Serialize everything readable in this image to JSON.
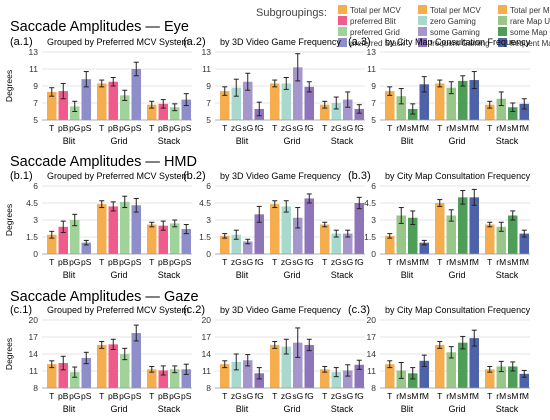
{
  "section_titles": [
    "Saccade Amplitudes — Eye",
    "Saccade Amplitudes — HMD",
    "Saccade Amplitudes — Gaze"
  ],
  "legend": {
    "title": "Subgroupings:",
    "columns": [
      [
        {
          "label": "Total per MCV",
          "color": "#f5ad4d"
        },
        {
          "label": "preferred Blit",
          "color": "#ef5c8c"
        },
        {
          "label": "preferred Grid",
          "color": "#9fd39a"
        },
        {
          "label": "preferred Stack",
          "color": "#8e8ecb"
        }
      ],
      [
        {
          "label": "Total per MCV",
          "color": "#f5ad4d"
        },
        {
          "label": "zero Gaming",
          "color": "#a9d8cf"
        },
        {
          "label": "some Gaming",
          "color": "#a597cc"
        },
        {
          "label": "frequent Gaming",
          "color": "#8e74b9"
        }
      ],
      [
        {
          "label": "Total per MCV",
          "color": "#f5ad4d"
        },
        {
          "label": "rare Map Use",
          "color": "#98c789"
        },
        {
          "label": "some Map Use",
          "color": "#4f9e58"
        },
        {
          "label": "frequent Map Use",
          "color": "#4d62a8"
        }
      ]
    ]
  },
  "chart_data": [
    {
      "type": "bar",
      "panel": "(a.1)",
      "subtitle": "Grouped by Preferred MCV System",
      "ylabel": "Degrees",
      "ylim": [
        5,
        13
      ],
      "yticks": [
        5,
        7,
        9,
        11,
        13
      ],
      "groups": [
        "Blit",
        "Grid",
        "Stack"
      ],
      "tick_labels": [
        "T",
        "pB",
        "pG",
        "pS"
      ],
      "colors": [
        "#f5ad4d",
        "#ef5c8c",
        "#9fd39a",
        "#8e8ecb"
      ],
      "values": [
        [
          8.3,
          8.4,
          6.6,
          9.8
        ],
        [
          9.3,
          9.5,
          7.9,
          11.0
        ],
        [
          6.8,
          6.9,
          6.5,
          7.4
        ]
      ],
      "errors": [
        [
          0.5,
          0.9,
          0.6,
          0.9
        ],
        [
          0.4,
          0.5,
          0.6,
          0.8
        ],
        [
          0.4,
          0.5,
          0.4,
          0.7
        ]
      ]
    },
    {
      "type": "bar",
      "panel": "(a.2)",
      "subtitle": "by 3D Video Game Frequency",
      "ylabel": "",
      "ylim": [
        5,
        13
      ],
      "yticks": [
        5,
        7,
        9,
        11,
        13
      ],
      "groups": [
        "Blit",
        "Grid",
        "Stack"
      ],
      "tick_labels": [
        "T",
        "zG",
        "sG",
        "fG"
      ],
      "colors": [
        "#f5ad4d",
        "#a9d8cf",
        "#a597cc",
        "#8e74b9"
      ],
      "values": [
        [
          8.4,
          8.8,
          9.5,
          6.3
        ],
        [
          9.3,
          9.3,
          11.2,
          8.9
        ],
        [
          6.8,
          7.0,
          7.4,
          6.3
        ]
      ],
      "errors": [
        [
          0.5,
          1.0,
          1.0,
          0.8
        ],
        [
          0.4,
          0.7,
          1.6,
          0.6
        ],
        [
          0.4,
          0.7,
          0.9,
          0.5
        ]
      ]
    },
    {
      "type": "bar",
      "panel": "(a.3)",
      "subtitle": "by City Map Consultation Frequency",
      "ylabel": "",
      "ylim": [
        5,
        13
      ],
      "yticks": [
        5,
        7,
        9,
        11,
        13
      ],
      "groups": [
        "Blit",
        "Grid",
        "Stack"
      ],
      "tick_labels": [
        "T",
        "rM",
        "sM",
        "fM"
      ],
      "colors": [
        "#f5ad4d",
        "#98c789",
        "#4f9e58",
        "#4d62a8"
      ],
      "values": [
        [
          8.4,
          7.8,
          6.3,
          9.2
        ],
        [
          9.3,
          8.8,
          9.6,
          9.7
        ],
        [
          6.8,
          7.5,
          6.5,
          6.9
        ]
      ],
      "errors": [
        [
          0.5,
          0.9,
          0.6,
          0.9
        ],
        [
          0.4,
          0.7,
          0.6,
          1.0
        ],
        [
          0.4,
          0.8,
          0.5,
          0.6
        ]
      ]
    },
    {
      "type": "bar",
      "panel": "(b.1)",
      "subtitle": "Grouped by Preferred MCV System",
      "ylabel": "Degrees",
      "ylim": [
        0,
        6
      ],
      "yticks": [
        0,
        1.5,
        3,
        4.5,
        6
      ],
      "groups": [
        "Blit",
        "Grid",
        "Stack"
      ],
      "tick_labels": [
        "T",
        "pB",
        "pG",
        "pS"
      ],
      "colors": [
        "#f5ad4d",
        "#ef5c8c",
        "#9fd39a",
        "#8e8ecb"
      ],
      "values": [
        [
          1.7,
          2.4,
          3.0,
          1.0
        ],
        [
          4.4,
          4.2,
          4.6,
          4.3
        ],
        [
          2.6,
          2.5,
          2.7,
          2.2
        ]
      ],
      "errors": [
        [
          0.3,
          0.5,
          0.5,
          0.2
        ],
        [
          0.3,
          0.4,
          0.5,
          0.6
        ],
        [
          0.2,
          0.4,
          0.3,
          0.4
        ]
      ]
    },
    {
      "type": "bar",
      "panel": "(b.2)",
      "subtitle": "by 3D Video Game Frequency",
      "ylabel": "",
      "ylim": [
        0,
        6
      ],
      "yticks": [
        0,
        1.5,
        3,
        4.5,
        6
      ],
      "groups": [
        "Blit",
        "Grid",
        "Stack"
      ],
      "tick_labels": [
        "T",
        "zG",
        "sG",
        "fG"
      ],
      "colors": [
        "#f5ad4d",
        "#a9d8cf",
        "#a597cc",
        "#8e74b9"
      ],
      "values": [
        [
          1.6,
          1.7,
          1.1,
          3.5
        ],
        [
          4.4,
          4.2,
          3.2,
          4.9
        ],
        [
          2.6,
          1.8,
          1.8,
          4.5
        ]
      ],
      "errors": [
        [
          0.2,
          0.4,
          0.2,
          0.7
        ],
        [
          0.3,
          0.5,
          0.9,
          0.4
        ],
        [
          0.2,
          0.3,
          0.3,
          0.5
        ]
      ]
    },
    {
      "type": "bar",
      "panel": "(b.3)",
      "subtitle": "by City Map Consultation Frequency",
      "ylabel": "",
      "ylim": [
        0,
        6
      ],
      "yticks": [
        0,
        1.5,
        3,
        4.5,
        6
      ],
      "groups": [
        "Blit",
        "Grid",
        "Stack"
      ],
      "tick_labels": [
        "T",
        "rM",
        "sM",
        "fM"
      ],
      "colors": [
        "#f5ad4d",
        "#98c789",
        "#4f9e58",
        "#4d62a8"
      ],
      "values": [
        [
          1.6,
          3.4,
          3.2,
          1.0
        ],
        [
          4.5,
          3.4,
          5.0,
          5.0
        ],
        [
          2.6,
          2.4,
          3.4,
          1.8
        ]
      ],
      "errors": [
        [
          0.2,
          0.7,
          0.6,
          0.2
        ],
        [
          0.3,
          0.5,
          0.6,
          0.7
        ],
        [
          0.2,
          0.4,
          0.4,
          0.3
        ]
      ]
    },
    {
      "type": "bar",
      "panel": "(c.1)",
      "subtitle": "Grouped by Preferred MCV System",
      "ylabel": "Degrees",
      "ylim": [
        8,
        20
      ],
      "yticks": [
        8,
        11,
        14,
        17,
        20
      ],
      "groups": [
        "Blit",
        "Grid",
        "Stack"
      ],
      "tick_labels": [
        "T",
        "pB",
        "pG",
        "pS"
      ],
      "colors": [
        "#f5ad4d",
        "#ef5c8c",
        "#9fd39a",
        "#8e8ecb"
      ],
      "values": [
        [
          12.2,
          12.4,
          10.8,
          13.3
        ],
        [
          15.6,
          15.7,
          14.0,
          17.7
        ],
        [
          11.3,
          11.1,
          11.3,
          11.3
        ]
      ],
      "errors": [
        [
          0.6,
          1.2,
          0.9,
          1.0
        ],
        [
          0.6,
          0.9,
          1.0,
          1.4
        ],
        [
          0.5,
          0.8,
          0.6,
          0.9
        ]
      ]
    },
    {
      "type": "bar",
      "panel": "(c.2)",
      "subtitle": "by 3D Video Game Frequency",
      "ylabel": "",
      "ylim": [
        8,
        20
      ],
      "yticks": [
        8,
        11,
        14,
        17,
        20
      ],
      "groups": [
        "Blit",
        "Grid",
        "Stack"
      ],
      "tick_labels": [
        "T",
        "zG",
        "sG",
        "fG"
      ],
      "colors": [
        "#f5ad4d",
        "#a9d8cf",
        "#a597cc",
        "#8e74b9"
      ],
      "values": [
        [
          12.2,
          12.6,
          12.9,
          10.6
        ],
        [
          15.6,
          15.3,
          16.0,
          15.6
        ],
        [
          11.3,
          10.8,
          11.1,
          12.1
        ]
      ],
      "errors": [
        [
          0.6,
          1.4,
          1.0,
          1.0
        ],
        [
          0.6,
          1.3,
          2.6,
          1.0
        ],
        [
          0.5,
          0.8,
          1.0,
          0.8
        ]
      ]
    },
    {
      "type": "bar",
      "panel": "(c.3)",
      "subtitle": "by City Map Consultation Frequency",
      "ylabel": "",
      "ylim": [
        8,
        20
      ],
      "yticks": [
        8,
        11,
        14,
        17,
        20
      ],
      "groups": [
        "Blit",
        "Grid",
        "Stack"
      ],
      "tick_labels": [
        "T",
        "rM",
        "sM",
        "fM"
      ],
      "colors": [
        "#f5ad4d",
        "#98c789",
        "#4f9e58",
        "#4d62a8"
      ],
      "values": [
        [
          12.2,
          11.1,
          10.6,
          12.8
        ],
        [
          15.6,
          14.3,
          16.0,
          16.8
        ],
        [
          11.3,
          11.8,
          11.8,
          10.5
        ]
      ],
      "errors": [
        [
          0.6,
          1.4,
          1.0,
          1.0
        ],
        [
          0.6,
          1.0,
          1.1,
          1.4
        ],
        [
          0.5,
          0.9,
          0.8,
          0.6
        ]
      ]
    }
  ]
}
